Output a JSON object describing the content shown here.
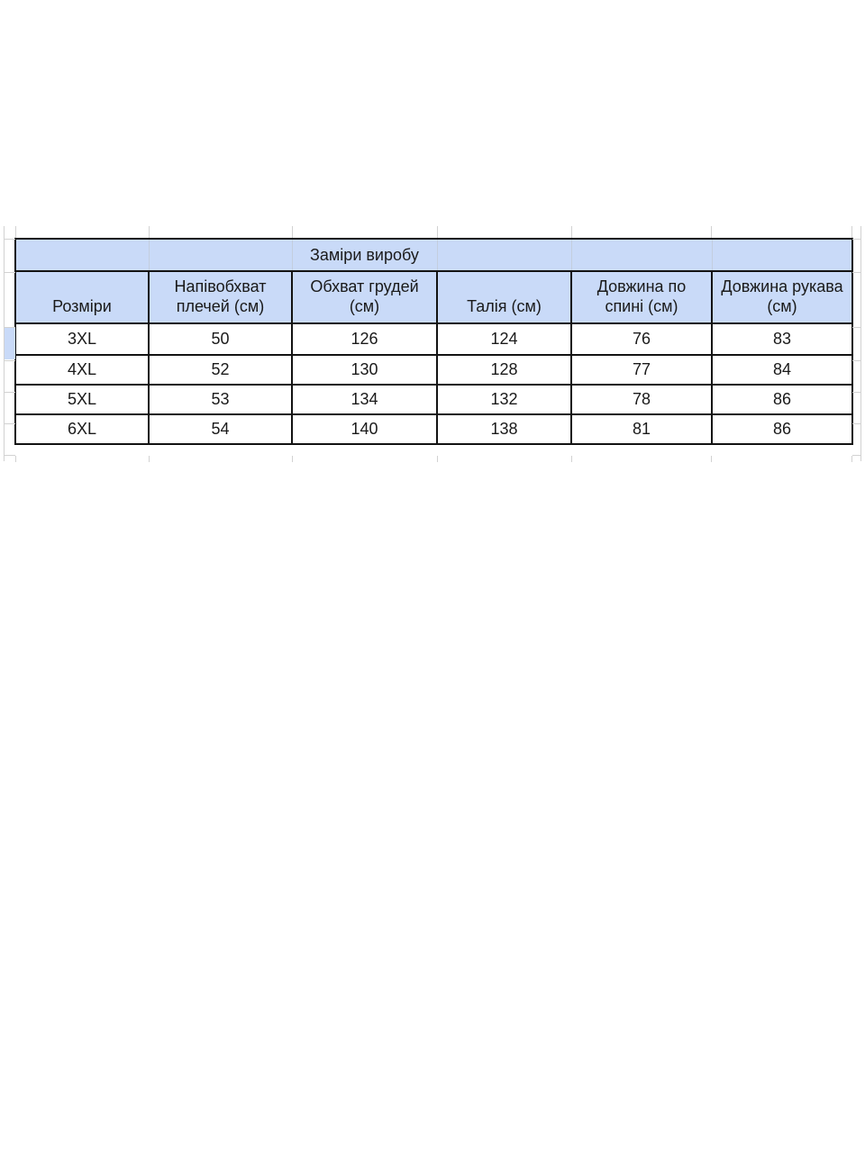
{
  "table": {
    "title_row": {
      "label": "Заміри виробу"
    },
    "columns": [
      {
        "label": "Розміри"
      },
      {
        "label": "Напівобхват плечей (см)"
      },
      {
        "label": "Обхват грудей (см)"
      },
      {
        "label": "Талія (см)"
      },
      {
        "label": "Довжина по спині (см)"
      },
      {
        "label": "Довжина рукава (см)"
      }
    ],
    "rows": [
      {
        "cells": [
          "3XL",
          "50",
          "126",
          "124",
          "76",
          "83"
        ]
      },
      {
        "cells": [
          "4XL",
          "52",
          "130",
          "128",
          "77",
          "84"
        ]
      },
      {
        "cells": [
          "5XL",
          "53",
          "134",
          "132",
          "78",
          "86"
        ]
      },
      {
        "cells": [
          "6XL",
          "54",
          "140",
          "138",
          "81",
          "86"
        ]
      }
    ],
    "colors": {
      "header_fill": "#c9daf8",
      "border": "#131313",
      "gridline": "#d2d2d2",
      "text": "#1a1a1a"
    }
  }
}
